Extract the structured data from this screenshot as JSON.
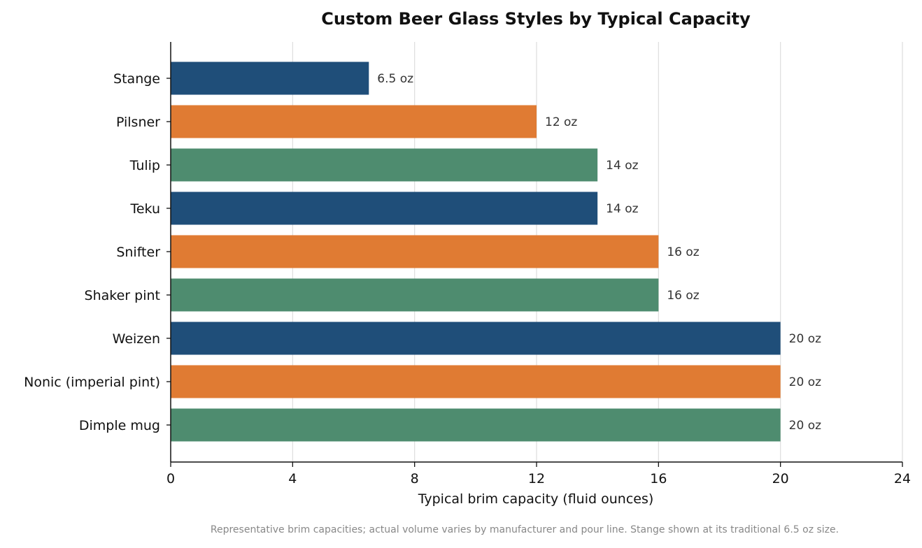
{
  "chart_data": {
    "type": "bar",
    "orientation": "horizontal",
    "title": "Custom Beer Glass Styles by Typical Capacity",
    "xlabel": "Typical brim capacity (fluid ounces)",
    "ylabel": "",
    "xlim": [
      0,
      24
    ],
    "xticks": [
      0,
      4,
      8,
      12,
      16,
      20,
      24
    ],
    "grid": "vertical",
    "legend": "none",
    "categories": [
      "Stange",
      "Pilsner",
      "Tulip",
      "Teku",
      "Snifter",
      "Shaker pint",
      "Weizen",
      "Nonic (imperial pint)",
      "Dimple mug"
    ],
    "values": [
      6.5,
      12,
      14,
      14,
      16,
      16,
      20,
      20,
      20
    ],
    "value_labels": [
      "6.5 oz",
      "12 oz",
      "14 oz",
      "14 oz",
      "16 oz",
      "16 oz",
      "20 oz",
      "20 oz",
      "20 oz"
    ],
    "colors": [
      "#1f4e79",
      "#e07b33",
      "#4e8c6f",
      "#1f4e79",
      "#e07b33",
      "#4e8c6f",
      "#1f4e79",
      "#e07b33",
      "#4e8c6f"
    ],
    "footnote": "Representative brim capacities; actual volume varies by manufacturer and pour line. Stange shown at its traditional 6.5 oz size."
  }
}
